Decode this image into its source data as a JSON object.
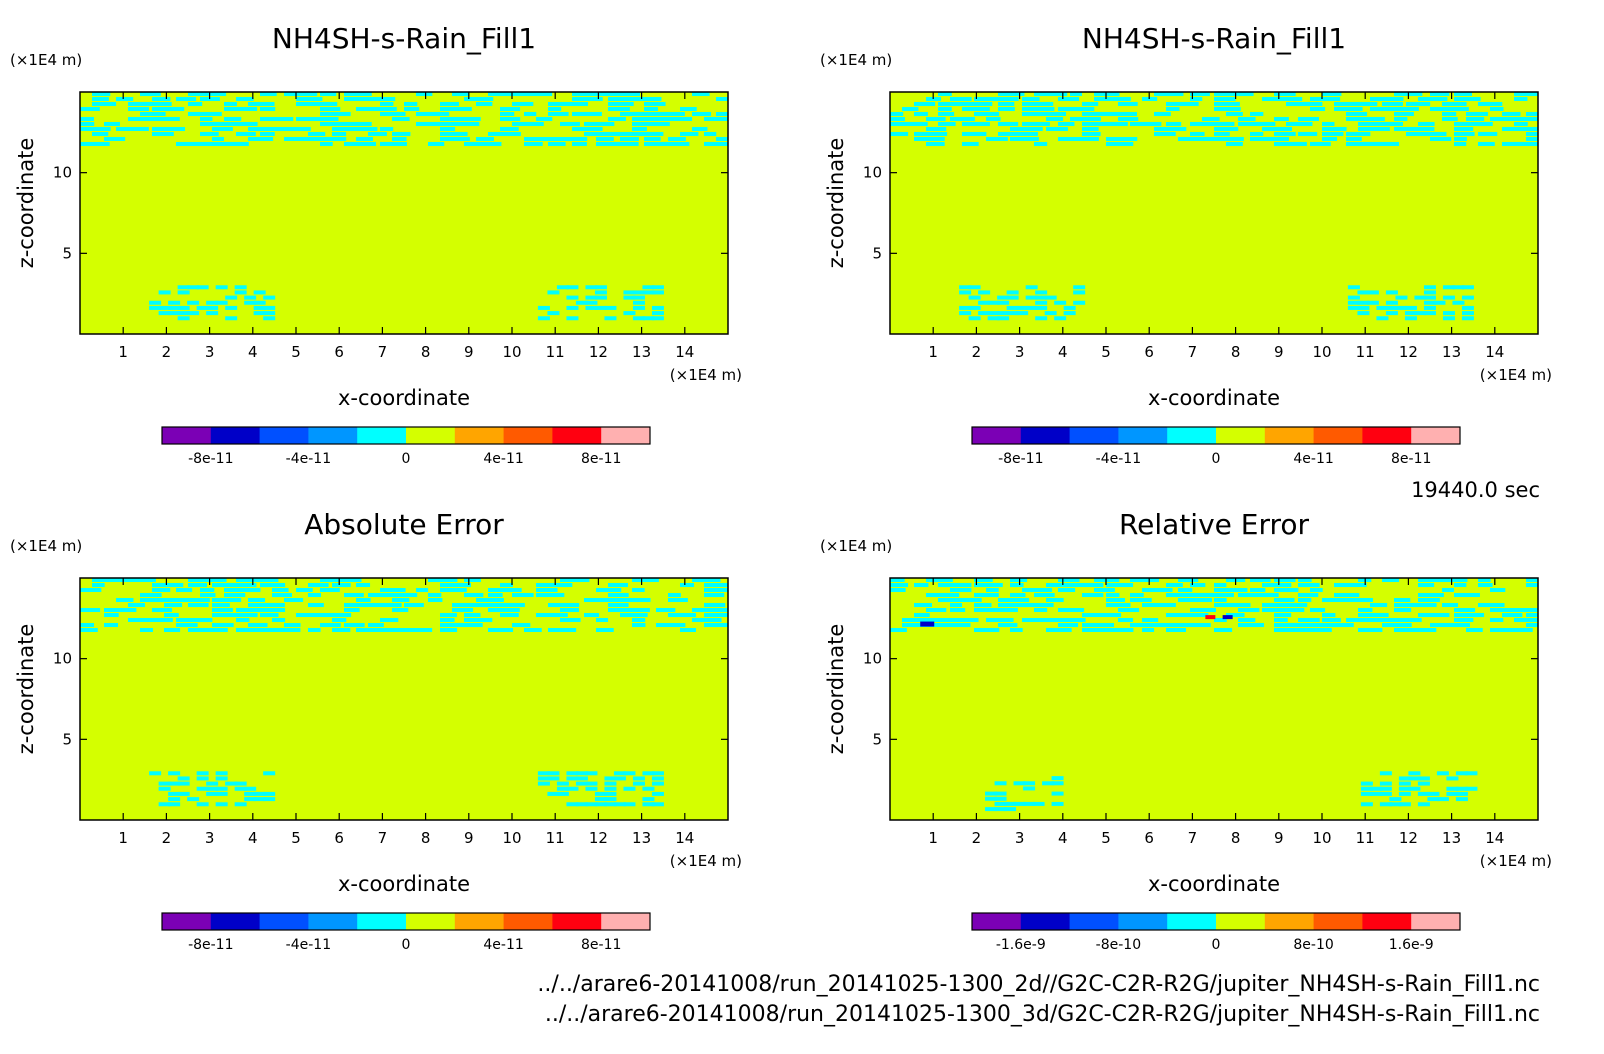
{
  "figure": {
    "time_label": "19440.0 sec",
    "file_paths": [
      "../../arare6-20141008/run_20141025-1300_2d//G2C-C2R-R2G/jupiter_NH4SH-s-Rain_Fill1.nc",
      "../../arare6-20141008/run_20141025-1300_3d/G2C-C2R-R2G/jupiter_NH4SH-s-Rain_Fill1.nc"
    ]
  },
  "colors": {
    "background_field": "#d4ff00",
    "band_field": "#00ffff",
    "palette": [
      "#7b00b5",
      "#0000c8",
      "#0050ff",
      "#0096ff",
      "#00ffff",
      "#d4ff00",
      "#ffa500",
      "#ff5a00",
      "#ff0010",
      "#ffb0b0"
    ]
  },
  "chart_data": [
    {
      "type": "heatmap",
      "title": "NH4SH-s-Rain_Fill1",
      "xlabel": "x-coordinate",
      "ylabel": "z-coordinate",
      "x_unit": "(×1E4 m)",
      "y_unit": "(×1E4 m)",
      "xlim": [
        0,
        15
      ],
      "ylim": [
        0,
        15
      ],
      "x_ticks": [
        "1",
        "2",
        "3",
        "4",
        "5",
        "6",
        "7",
        "8",
        "9",
        "10",
        "11",
        "12",
        "13",
        "14"
      ],
      "y_ticks": [
        "5",
        "10"
      ],
      "colorbar_labels": [
        "-8e-11",
        "-4e-11",
        "0",
        "4e-11",
        "8e-11"
      ],
      "colorbar_range": [
        -1e-10,
        1e-10
      ],
      "grid": false
    },
    {
      "type": "heatmap",
      "title": "NH4SH-s-Rain_Fill1",
      "xlabel": "x-coordinate",
      "ylabel": "z-coordinate",
      "x_unit": "(×1E4 m)",
      "y_unit": "(×1E4 m)",
      "xlim": [
        0,
        15
      ],
      "ylim": [
        0,
        15
      ],
      "x_ticks": [
        "1",
        "2",
        "3",
        "4",
        "5",
        "6",
        "7",
        "8",
        "9",
        "10",
        "11",
        "12",
        "13",
        "14"
      ],
      "y_ticks": [
        "5",
        "10"
      ],
      "colorbar_labels": [
        "-8e-11",
        "-4e-11",
        "0",
        "4e-11",
        "8e-11"
      ],
      "colorbar_range": [
        -1e-10,
        1e-10
      ],
      "grid": false
    },
    {
      "type": "heatmap",
      "title": "Absolute Error",
      "xlabel": "x-coordinate",
      "ylabel": "z-coordinate",
      "x_unit": "(×1E4 m)",
      "y_unit": "(×1E4 m)",
      "xlim": [
        0,
        15
      ],
      "ylim": [
        0,
        15
      ],
      "x_ticks": [
        "1",
        "2",
        "3",
        "4",
        "5",
        "6",
        "7",
        "8",
        "9",
        "10",
        "11",
        "12",
        "13",
        "14"
      ],
      "y_ticks": [
        "5",
        "10"
      ],
      "colorbar_labels": [
        "-8e-11",
        "-4e-11",
        "0",
        "4e-11",
        "8e-11"
      ],
      "colorbar_range": [
        -1e-10,
        1e-10
      ],
      "grid": false
    },
    {
      "type": "heatmap",
      "title": "Relative Error",
      "xlabel": "x-coordinate",
      "ylabel": "z-coordinate",
      "x_unit": "(×1E4 m)",
      "y_unit": "(×1E4 m)",
      "xlim": [
        0,
        15
      ],
      "ylim": [
        0,
        15
      ],
      "x_ticks": [
        "1",
        "2",
        "3",
        "4",
        "5",
        "6",
        "7",
        "8",
        "9",
        "10",
        "11",
        "12",
        "13",
        "14"
      ],
      "y_ticks": [
        "5",
        "10"
      ],
      "colorbar_labels": [
        "-1.6e-9",
        "-8e-10",
        "0",
        "8e-10",
        "1.6e-9"
      ],
      "colorbar_range": [
        -2e-09,
        2e-09
      ],
      "grid": false
    }
  ]
}
